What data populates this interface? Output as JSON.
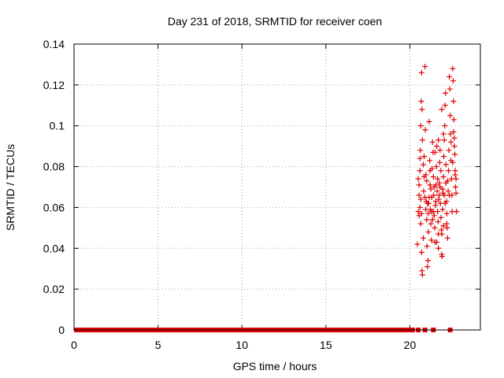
{
  "chart_data": {
    "type": "scatter",
    "title": "Day 231 of 2018, SRMTID for receiver coen",
    "xlabel": "GPS time / hours",
    "ylabel": "SRMTID / TECUs",
    "xlim": [
      0,
      24.2
    ],
    "ylim": [
      0,
      0.14
    ],
    "xticks": [
      0,
      5,
      10,
      15,
      20
    ],
    "yticks": [
      0,
      0.02,
      0.04,
      0.06,
      0.08,
      0.1,
      0.12,
      0.14
    ],
    "xtick_labels": [
      "0",
      "5",
      "10",
      "15",
      "20"
    ],
    "ytick_labels": [
      "0",
      "0.02",
      "0.04",
      "0.06",
      "0.08",
      "0.1",
      "0.12",
      "0.14"
    ],
    "grid": true,
    "marker": "+",
    "color": "#e00000",
    "zero_band": {
      "x_start": 0,
      "x_end": 20.3,
      "y": 0
    },
    "zero_points_x": [
      20.5,
      20.9,
      21.4,
      22.4
    ],
    "series": [
      {
        "name": "SRMTID",
        "points": [
          [
            20.45,
            0.042
          ],
          [
            20.5,
            0.058
          ],
          [
            20.55,
            0.066
          ],
          [
            20.6,
            0.078
          ],
          [
            20.62,
            0.088
          ],
          [
            20.65,
            0.1
          ],
          [
            20.68,
            0.112
          ],
          [
            20.7,
            0.126
          ],
          [
            20.72,
            0.108
          ],
          [
            20.75,
            0.093
          ],
          [
            20.5,
            0.074
          ],
          [
            20.55,
            0.056
          ],
          [
            20.6,
            0.06
          ],
          [
            20.65,
            0.052
          ],
          [
            20.7,
            0.038
          ],
          [
            20.72,
            0.029
          ],
          [
            20.75,
            0.027
          ],
          [
            20.8,
            0.045
          ],
          [
            20.82,
            0.068
          ],
          [
            20.85,
            0.085
          ],
          [
            20.9,
            0.129
          ],
          [
            20.92,
            0.098
          ],
          [
            20.95,
            0.076
          ],
          [
            20.98,
            0.063
          ],
          [
            21.0,
            0.054
          ],
          [
            21.02,
            0.041
          ],
          [
            21.05,
            0.031
          ],
          [
            21.08,
            0.034
          ],
          [
            21.1,
            0.048
          ],
          [
            21.12,
            0.062
          ],
          [
            21.15,
            0.102
          ],
          [
            21.18,
            0.083
          ],
          [
            21.2,
            0.071
          ],
          [
            21.22,
            0.059
          ],
          [
            21.25,
            0.052
          ],
          [
            21.28,
            0.044
          ],
          [
            21.3,
            0.065
          ],
          [
            21.32,
            0.079
          ],
          [
            21.35,
            0.092
          ],
          [
            21.38,
            0.087
          ],
          [
            21.4,
            0.075
          ],
          [
            21.42,
            0.066
          ],
          [
            21.45,
            0.056
          ],
          [
            21.48,
            0.05
          ],
          [
            21.5,
            0.043
          ],
          [
            21.52,
            0.061
          ],
          [
            21.55,
            0.071
          ],
          [
            21.58,
            0.08
          ],
          [
            21.6,
            0.09
          ],
          [
            21.62,
            0.068
          ],
          [
            21.65,
            0.058
          ],
          [
            21.68,
            0.053
          ],
          [
            21.7,
            0.047
          ],
          [
            21.72,
            0.064
          ],
          [
            21.75,
            0.072
          ],
          [
            21.78,
            0.082
          ],
          [
            21.8,
            0.07
          ],
          [
            21.82,
            0.062
          ],
          [
            21.85,
            0.055
          ],
          [
            21.88,
            0.049
          ],
          [
            21.9,
            0.037
          ],
          [
            21.92,
            0.036
          ],
          [
            21.95,
            0.059
          ],
          [
            21.98,
            0.067
          ],
          [
            22.0,
            0.075
          ],
          [
            22.02,
            0.085
          ],
          [
            22.05,
            0.093
          ],
          [
            22.08,
            0.1
          ],
          [
            22.1,
            0.11
          ],
          [
            22.12,
            0.116
          ],
          [
            22.15,
            0.072
          ],
          [
            22.18,
            0.063
          ],
          [
            22.2,
            0.057
          ],
          [
            22.22,
            0.05
          ],
          [
            22.25,
            0.045
          ],
          [
            22.28,
            0.068
          ],
          [
            22.3,
            0.078
          ],
          [
            22.32,
            0.088
          ],
          [
            22.35,
            0.124
          ],
          [
            22.38,
            0.118
          ],
          [
            22.4,
            0.105
          ],
          [
            22.42,
            0.096
          ],
          [
            22.45,
            0.083
          ],
          [
            22.48,
            0.074
          ],
          [
            22.5,
            0.066
          ],
          [
            22.52,
            0.058
          ],
          [
            22.55,
            0.128
          ],
          [
            22.58,
            0.122
          ],
          [
            22.6,
            0.112
          ],
          [
            22.62,
            0.103
          ],
          [
            22.65,
            0.094
          ],
          [
            22.68,
            0.086
          ],
          [
            22.7,
            0.078
          ],
          [
            22.72,
            0.07
          ],
          [
            22.75,
            0.067
          ],
          [
            22.78,
            0.058
          ],
          [
            22.6,
            0.097
          ],
          [
            22.65,
            0.09
          ],
          [
            22.7,
            0.076
          ],
          [
            22.75,
            0.074
          ],
          [
            20.55,
            0.071
          ],
          [
            20.6,
            0.084
          ],
          [
            20.65,
            0.064
          ],
          [
            20.7,
            0.057
          ],
          [
            20.8,
            0.081
          ],
          [
            20.85,
            0.075
          ],
          [
            20.9,
            0.065
          ],
          [
            20.95,
            0.059
          ],
          [
            21.0,
            0.073
          ],
          [
            21.05,
            0.062
          ],
          [
            21.1,
            0.057
          ],
          [
            21.15,
            0.065
          ],
          [
            21.2,
            0.078
          ],
          [
            21.25,
            0.069
          ],
          [
            21.3,
            0.058
          ],
          [
            21.35,
            0.054
          ],
          [
            21.45,
            0.07
          ],
          [
            21.55,
            0.063
          ],
          [
            21.65,
            0.074
          ],
          [
            21.75,
            0.066
          ],
          [
            21.85,
            0.078
          ],
          [
            21.95,
            0.069
          ],
          [
            22.05,
            0.066
          ],
          [
            22.15,
            0.081
          ],
          [
            22.25,
            0.073
          ],
          [
            22.35,
            0.066
          ],
          [
            22.45,
            0.092
          ],
          [
            22.55,
            0.082
          ],
          [
            21.7,
            0.093
          ],
          [
            21.8,
            0.088
          ],
          [
            21.9,
            0.108
          ],
          [
            22.0,
            0.096
          ],
          [
            22.1,
            0.062
          ],
          [
            22.2,
            0.052
          ],
          [
            21.6,
            0.043
          ],
          [
            21.7,
            0.04
          ],
          [
            21.9,
            0.047
          ],
          [
            22.0,
            0.051
          ],
          [
            21.5,
            0.087
          ],
          [
            21.4,
            0.058
          ]
        ]
      }
    ]
  }
}
